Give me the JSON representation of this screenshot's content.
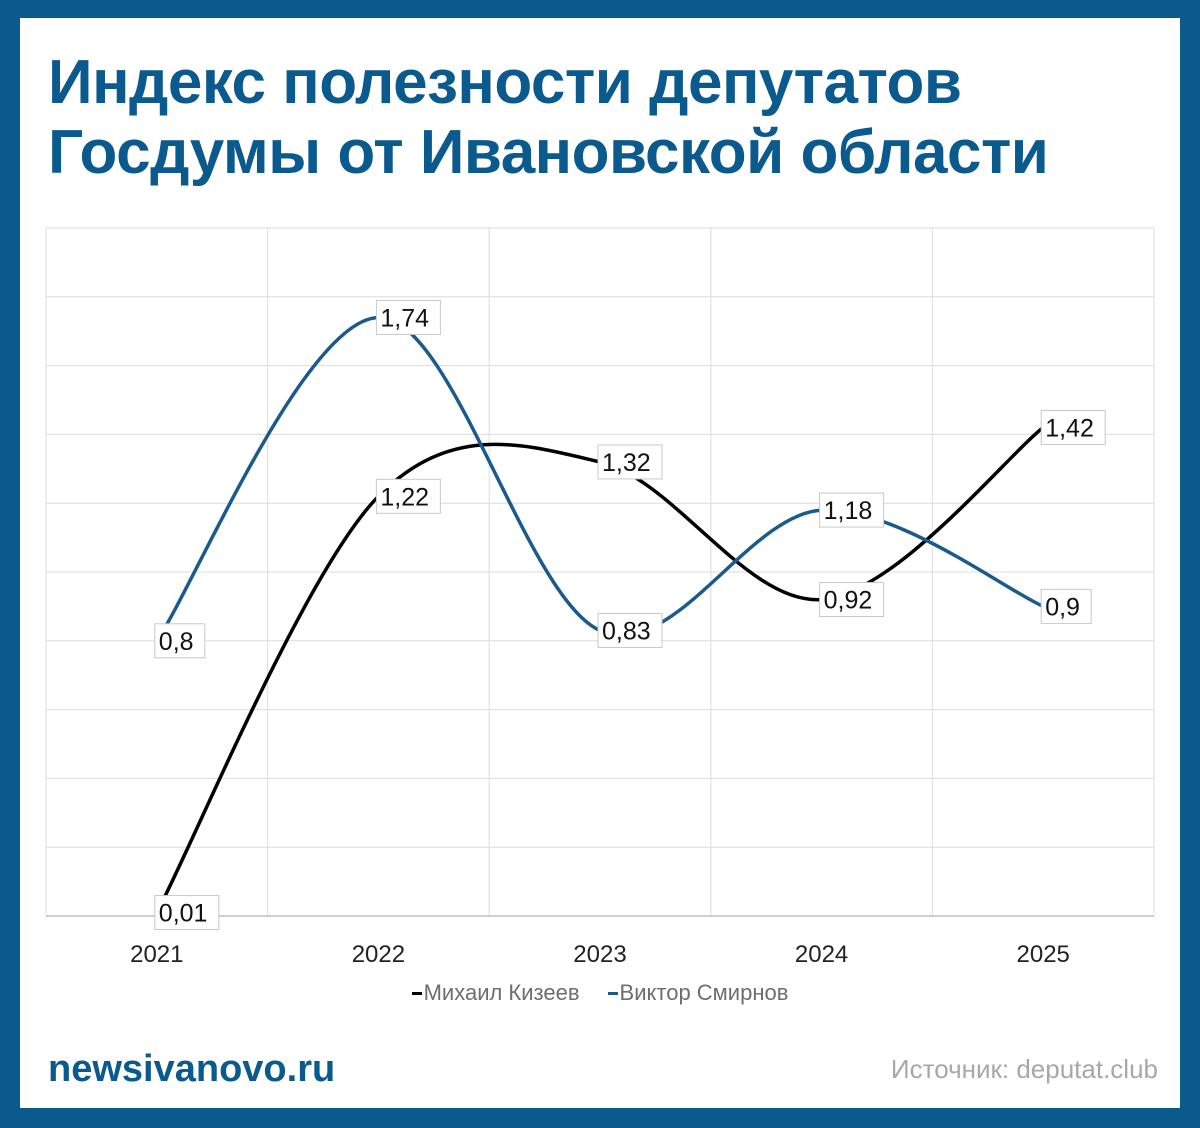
{
  "title_line1": "Индекс полезности депутатов",
  "title_line2": "Госдумы от Ивановской области",
  "brand": "newsivanovo.ru",
  "source": "Источник: deputat.club",
  "colors": {
    "accent": "#0b5a8e",
    "series_black": "#000000",
    "series_blue": "#1a5a8c"
  },
  "chart_data": {
    "type": "line",
    "title": "Индекс полезности депутатов Госдумы от Ивановской области",
    "x": [
      "2021",
      "2022",
      "2023",
      "2024",
      "2025"
    ],
    "ylim": [
      0,
      2
    ],
    "grid": true,
    "smooth": true,
    "legend_position": "bottom",
    "series": [
      {
        "name": "Михаил Кизеев",
        "values": [
          0.01,
          1.22,
          1.32,
          0.92,
          1.42
        ],
        "labels": [
          "0,01",
          "1,22",
          "1,32",
          "0,92",
          "1,42"
        ],
        "color": "#000000"
      },
      {
        "name": "Виктор Смирнов",
        "values": [
          0.8,
          1.74,
          0.83,
          1.18,
          0.9
        ],
        "labels": [
          "0,8",
          "1,74",
          "0,83",
          "1,18",
          "0,9"
        ],
        "color": "#1a5a8c"
      }
    ]
  }
}
